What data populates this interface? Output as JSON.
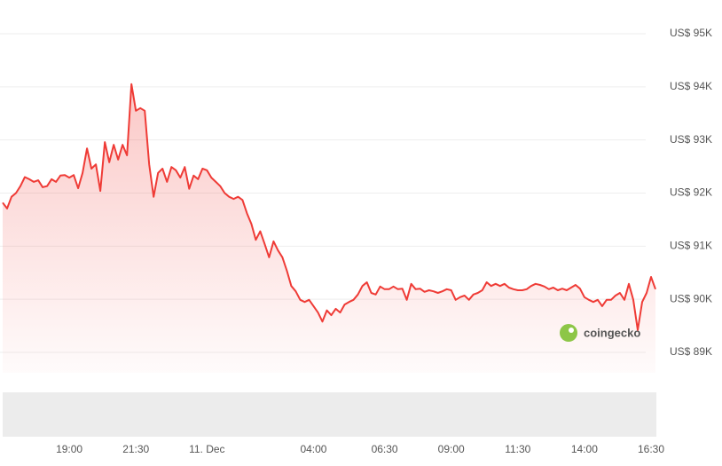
{
  "chart_data": {
    "type": "line",
    "color": "#ef3b36",
    "watermark": "coingecko",
    "categories": [
      null,
      null,
      null,
      null,
      null,
      null,
      null,
      null,
      null,
      null,
      null,
      null,
      null,
      null,
      null,
      "19:00",
      null,
      null,
      null,
      null,
      null,
      null,
      null,
      null,
      null,
      null,
      null,
      null,
      null,
      null,
      "21:30",
      null,
      null,
      null,
      null,
      null,
      null,
      null,
      null,
      null,
      null,
      null,
      null,
      null,
      null,
      null,
      "11. Dec",
      null,
      null,
      null,
      null,
      null,
      null,
      null,
      null,
      null,
      null,
      null,
      null,
      null,
      null,
      null,
      null,
      null,
      null,
      null,
      null,
      null,
      null,
      null,
      "04:00",
      null,
      null,
      null,
      null,
      null,
      null,
      null,
      null,
      null,
      null,
      null,
      null,
      null,
      null,
      null,
      "06:30",
      null,
      null,
      null,
      null,
      null,
      null,
      null,
      null,
      null,
      null,
      null,
      null,
      null,
      null,
      "09:00",
      null,
      null,
      null,
      null,
      null,
      null,
      null,
      null,
      null,
      null,
      null,
      null,
      null,
      null,
      "11:30",
      null,
      null,
      null,
      null,
      null,
      null,
      null,
      null,
      null,
      null,
      null,
      null,
      null,
      null,
      "14:00",
      null,
      null,
      null,
      null,
      null,
      null,
      null,
      null,
      null,
      null,
      null,
      null,
      null,
      null,
      "16:30",
      null
    ],
    "values": [
      91820,
      91710,
      91930,
      92000,
      92130,
      92300,
      92260,
      92210,
      92240,
      92110,
      92130,
      92260,
      92210,
      92330,
      92340,
      92290,
      92340,
      92090,
      92380,
      92840,
      92460,
      92540,
      92040,
      92960,
      92580,
      92910,
      92630,
      92910,
      92710,
      94050,
      93550,
      93600,
      93550,
      92540,
      91930,
      92380,
      92460,
      92210,
      92490,
      92430,
      92290,
      92490,
      92080,
      92330,
      92260,
      92460,
      92430,
      92290,
      92210,
      92130,
      92000,
      91930,
      91890,
      91930,
      91870,
      91620,
      91420,
      91120,
      91280,
      91040,
      90790,
      91090,
      90920,
      90790,
      90540,
      90250,
      90150,
      89990,
      89950,
      89990,
      89870,
      89750,
      89580,
      89790,
      89700,
      89820,
      89750,
      89900,
      89950,
      89990,
      90090,
      90250,
      90320,
      90120,
      90090,
      90240,
      90190,
      90190,
      90240,
      90190,
      90200,
      89990,
      90290,
      90190,
      90200,
      90140,
      90170,
      90150,
      90120,
      90150,
      90190,
      90170,
      89990,
      90040,
      90070,
      89990,
      90090,
      90120,
      90170,
      90320,
      90250,
      90290,
      90250,
      90290,
      90220,
      90190,
      90170,
      90170,
      90190,
      90250,
      90290,
      90270,
      90240,
      90190,
      90220,
      90170,
      90200,
      90170,
      90220,
      90270,
      90200,
      90040,
      89990,
      89950,
      89990,
      89870,
      89990,
      89990,
      90070,
      90120,
      89990,
      90290,
      89990,
      89420,
      89950,
      90120,
      90420,
      90190
    ],
    "ylim": [
      89000,
      95000
    ],
    "yticks": [
      {
        "value": 89000,
        "label": "US$ 89K"
      },
      {
        "value": 90000,
        "label": "US$ 90K"
      },
      {
        "value": 91000,
        "label": "US$ 91K"
      },
      {
        "value": 92000,
        "label": "US$ 92K"
      },
      {
        "value": 93000,
        "label": "US$ 93K"
      },
      {
        "value": 94000,
        "label": "US$ 94K"
      },
      {
        "value": 95000,
        "label": "US$ 95K"
      }
    ],
    "grid": true
  }
}
